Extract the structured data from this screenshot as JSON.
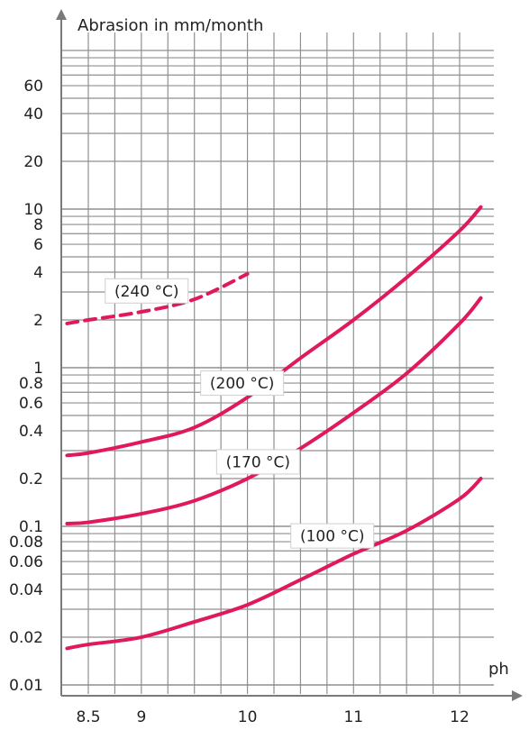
{
  "chart_data": {
    "type": "line",
    "title": "",
    "ylabel": "Abrasion in mm/month",
    "xlabel": "ph",
    "y_scale": "log",
    "grid": true,
    "xlim": [
      8.3,
      12.2
    ],
    "ylim": [
      0.01,
      100
    ],
    "x_ticks": [
      8.5,
      9,
      10,
      11,
      12
    ],
    "x_tick_labels": [
      "8.5",
      "9",
      "10",
      "11",
      "12"
    ],
    "y_ticks": [
      0.01,
      0.02,
      0.04,
      0.06,
      0.08,
      0.1,
      0.2,
      0.4,
      0.6,
      0.8,
      1,
      2,
      4,
      6,
      8,
      10,
      20,
      40,
      60
    ],
    "y_tick_labels": [
      "0.01",
      "0.02",
      "0.04",
      "0.06",
      "0.08",
      "0.1",
      "0.2",
      "0.4",
      "0.6",
      "0.8",
      "1",
      "2",
      "4",
      "6",
      "8",
      "10",
      "20",
      "40",
      "60"
    ],
    "line_color": "#e0195a",
    "series": [
      {
        "name": "(240 °C)",
        "dashed": true,
        "x": [
          8.3,
          8.5,
          9,
          9.5,
          10
        ],
        "y": [
          1.9,
          2.0,
          2.25,
          2.7,
          3.9
        ]
      },
      {
        "name": "(200 °C)",
        "dashed": false,
        "x": [
          8.3,
          8.5,
          9,
          9.5,
          10,
          10.5,
          11,
          11.5,
          12,
          12.2
        ],
        "y": [
          0.28,
          0.29,
          0.34,
          0.42,
          0.65,
          1.15,
          2.0,
          3.7,
          7.3,
          10.3
        ]
      },
      {
        "name": "(170 °C)",
        "dashed": false,
        "x": [
          8.3,
          8.5,
          9,
          9.5,
          10,
          10.5,
          11,
          11.5,
          12,
          12.2
        ],
        "y": [
          0.104,
          0.106,
          0.12,
          0.145,
          0.2,
          0.31,
          0.52,
          0.92,
          1.9,
          2.75
        ]
      },
      {
        "name": "(100 °C)",
        "dashed": false,
        "x": [
          8.3,
          8.5,
          9,
          9.5,
          10,
          10.5,
          11,
          11.5,
          12,
          12.2
        ],
        "y": [
          0.017,
          0.018,
          0.02,
          0.025,
          0.032,
          0.046,
          0.067,
          0.094,
          0.149,
          0.2
        ]
      }
    ]
  }
}
